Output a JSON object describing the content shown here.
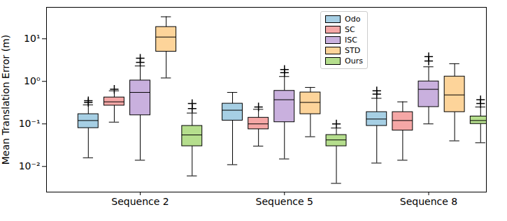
{
  "chart_data": {
    "type": "box",
    "y_label": "Mean Translation Error (m)",
    "log": "y",
    "grid": false,
    "legend": "upper center",
    "marker": "plus",
    "categories": [
      "Sequence 2",
      "Sequence 5",
      "Sequence 8"
    ],
    "ylim": [
      0.0025,
      55
    ],
    "yticks": [
      {
        "value": 0.01,
        "label": "10⁻²"
      },
      {
        "value": 0.1,
        "label": "10⁻¹"
      },
      {
        "value": 1,
        "label": "10⁰"
      },
      {
        "value": 10,
        "label": "10¹"
      }
    ],
    "series": [
      {
        "name": "Odo",
        "color": "#a6cfe4",
        "values": [
          0.12,
          0.21,
          0.13
        ],
        "q1": [
          0.08,
          0.12,
          0.09
        ],
        "q3": [
          0.17,
          0.3,
          0.19
        ],
        "whisker_low": [
          0.016,
          0.011,
          0.012
        ],
        "whisker_high": [
          0.28,
          0.55,
          0.4
        ],
        "outliers": [
          [
            0.32,
            0.35
          ],
          [],
          [
            0.5,
            0.6
          ]
        ]
      },
      {
        "name": "SC",
        "color": "#f5a7a6",
        "values": [
          0.33,
          0.1,
          0.12
        ],
        "q1": [
          0.27,
          0.075,
          0.07
        ],
        "q3": [
          0.42,
          0.14,
          0.19
        ],
        "whisker_low": [
          0.11,
          0.03,
          0.014
        ],
        "whisker_high": [
          0.6,
          0.22,
          0.33
        ],
        "outliers": [
          [
            0.65
          ],
          [
            0.25
          ],
          []
        ]
      },
      {
        "name": "ISC",
        "color": "#c9b0de",
        "values": [
          0.55,
          0.37,
          0.65
        ],
        "q1": [
          0.16,
          0.11,
          0.25
        ],
        "q3": [
          1.05,
          0.6,
          1.0
        ],
        "whisker_low": [
          0.014,
          0.015,
          0.1
        ],
        "whisker_high": [
          2.3,
          1.3,
          2.2
        ],
        "outliers": [
          [
            2.8,
            3.5
          ],
          [
            1.6,
            1.9
          ],
          [
            3.0,
            3.8
          ]
        ]
      },
      {
        "name": "STD",
        "color": "#fdd49a",
        "values": [
          11,
          0.32,
          0.48
        ],
        "q1": [
          5,
          0.17,
          0.19
        ],
        "q3": [
          19,
          0.55,
          1.3
        ],
        "whisker_low": [
          1.2,
          0.05,
          0.04
        ],
        "whisker_high": [
          33,
          0.72,
          2.6
        ],
        "outliers": [
          [],
          [],
          []
        ]
      },
      {
        "name": "Ours",
        "color": "#b5de8d",
        "values": [
          0.055,
          0.042,
          0.12
        ],
        "q1": [
          0.03,
          0.03,
          0.1
        ],
        "q3": [
          0.09,
          0.055,
          0.15
        ],
        "whisker_low": [
          0.006,
          0.004,
          0.036
        ],
        "whisker_high": [
          0.18,
          0.08,
          0.25
        ],
        "outliers": [
          [
            0.23,
            0.3
          ],
          [
            0.1
          ],
          [
            0.3,
            0.37
          ]
        ]
      }
    ]
  }
}
